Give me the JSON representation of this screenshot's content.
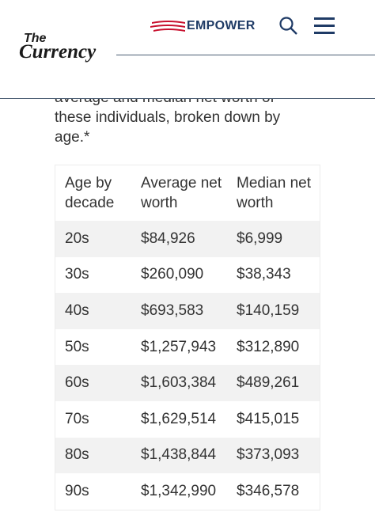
{
  "header": {
    "logo_small": "The",
    "logo": "Currency",
    "brand": "EMPOWER"
  },
  "intro": "average and median net worth of these individuals, broken down by age.*",
  "table": {
    "headers": [
      "Age by decade",
      "Average net worth",
      "Median net worth"
    ],
    "rows": [
      [
        "20s",
        "$84,926",
        "$6,999"
      ],
      [
        "30s",
        "$260,090",
        "$38,343"
      ],
      [
        "40s",
        "$693,583",
        "$140,159"
      ],
      [
        "50s",
        "$1,257,943",
        "$312,890"
      ],
      [
        "60s",
        "$1,603,384",
        "$489,261"
      ],
      [
        "70s",
        "$1,629,514",
        "$415,015"
      ],
      [
        "80s",
        "$1,438,844",
        "$373,093"
      ],
      [
        "90s",
        "$1,342,990",
        "$346,578"
      ]
    ]
  }
}
